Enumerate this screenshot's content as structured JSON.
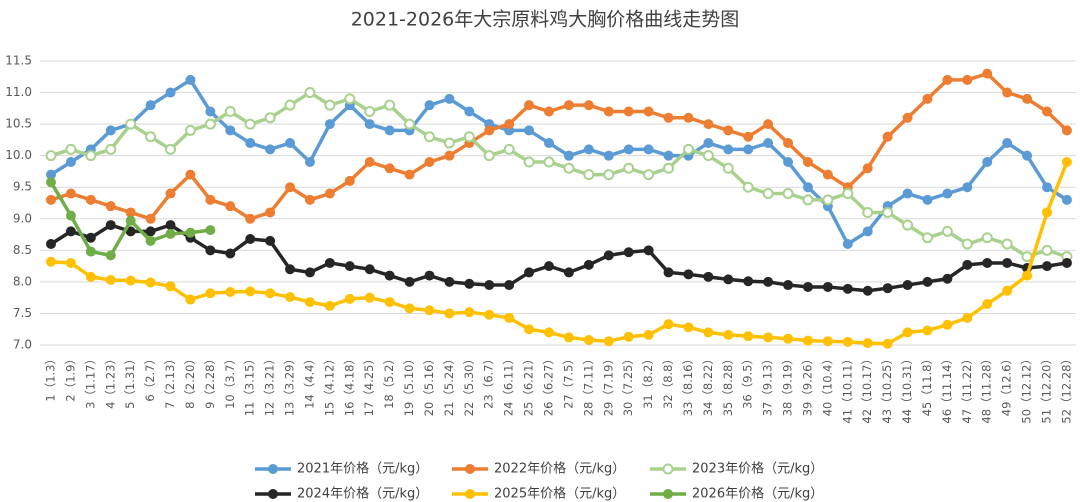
{
  "chart_data": {
    "type": "line",
    "title": "2021-2026年大宗原料鸡大胸价格曲线走势图",
    "categories": [
      "1（1.3）",
      "2（1.9）",
      "3（1.17）",
      "4（1.23）",
      "5（1.31）",
      "6（2.7）",
      "7（2.13）",
      "8（2.20）",
      "9（2.28）",
      "10（3.7）",
      "11（3.15）",
      "12（3.21）",
      "13（3.29）",
      "14（4.4）",
      "15（4.12）",
      "16（4.18）",
      "17（4.25）",
      "18（5.2）",
      "19（5.10）",
      "20（5.16）",
      "21（5.24）",
      "22（5.30）",
      "23（6.7）",
      "24（6.11）",
      "25（6.21）",
      "26（6.27）",
      "27（7.5）",
      "28（7.11）",
      "29（7.19）",
      "30（7.25）",
      "31（8.2）",
      "32（8.8）",
      "33（8.16）",
      "34（8.22）",
      "35（8.28）",
      "36（9.5）",
      "37（9.13）",
      "38（9.19）",
      "39（9.26）",
      "40（10.4）",
      "41（10.11）",
      "42（10.17）",
      "43（10.25）",
      "44（10.31）",
      "45（11.8）",
      "46（11.14）",
      "47（11.22）",
      "48（11.28）",
      "49（12.6）",
      "50（12.12）",
      "51（12.20）",
      "52（12.28）"
    ],
    "series": [
      {
        "name": "2021年价格（元/kg）",
        "color": "#5b9bd5",
        "values": [
          9.7,
          9.9,
          10.1,
          10.4,
          10.5,
          10.8,
          11.0,
          11.2,
          10.7,
          10.4,
          10.2,
          10.1,
          10.2,
          9.9,
          10.5,
          10.8,
          10.5,
          10.4,
          10.4,
          10.8,
          10.9,
          10.7,
          10.5,
          10.4,
          10.4,
          10.2,
          10.0,
          10.1,
          10.0,
          10.1,
          10.1,
          10.0,
          10.0,
          10.2,
          10.1,
          10.1,
          10.2,
          9.9,
          9.5,
          9.2,
          8.6,
          8.8,
          9.2,
          9.4,
          9.3,
          9.4,
          9.5,
          9.9,
          10.2,
          10.0,
          9.5,
          9.3
        ]
      },
      {
        "name": "2022年价格（元/kg）",
        "color": "#ed7d31",
        "values": [
          9.3,
          9.4,
          9.3,
          9.2,
          9.1,
          9.0,
          9.4,
          9.7,
          9.3,
          9.2,
          9.0,
          9.1,
          9.5,
          9.3,
          9.4,
          9.6,
          9.9,
          9.8,
          9.7,
          9.9,
          10.0,
          10.2,
          10.4,
          10.5,
          10.8,
          10.7,
          10.8,
          10.8,
          10.7,
          10.7,
          10.7,
          10.6,
          10.6,
          10.5,
          10.4,
          10.3,
          10.5,
          10.2,
          9.9,
          9.7,
          9.5,
          9.8,
          10.3,
          10.6,
          10.9,
          11.2,
          11.2,
          11.3,
          11.0,
          10.9,
          10.7,
          10.4
        ]
      },
      {
        "name": "2023年价格（元/kg）",
        "color": "#a9d18e",
        "hollow": true,
        "values": [
          10.0,
          10.1,
          10.0,
          10.1,
          10.5,
          10.3,
          10.1,
          10.4,
          10.5,
          10.7,
          10.5,
          10.6,
          10.8,
          11.0,
          10.8,
          10.9,
          10.7,
          10.8,
          10.5,
          10.3,
          10.2,
          10.3,
          10.0,
          10.1,
          9.9,
          9.9,
          9.8,
          9.7,
          9.7,
          9.8,
          9.7,
          9.8,
          10.1,
          10.0,
          9.8,
          9.5,
          9.4,
          9.4,
          9.3,
          9.3,
          9.4,
          9.1,
          9.1,
          8.9,
          8.7,
          8.8,
          8.6,
          8.7,
          8.6,
          8.4,
          8.5,
          8.4
        ]
      },
      {
        "name": "2024年价格（元/kg）",
        "color": "#262626",
        "values": [
          8.6,
          8.8,
          8.7,
          8.9,
          8.8,
          8.8,
          8.9,
          8.7,
          8.5,
          8.45,
          8.68,
          8.65,
          8.2,
          8.15,
          8.3,
          8.25,
          8.2,
          8.1,
          8.0,
          8.1,
          8.0,
          7.97,
          7.95,
          7.95,
          8.15,
          8.25,
          8.15,
          8.27,
          8.42,
          8.47,
          8.5,
          8.15,
          8.12,
          8.08,
          8.04,
          8.01,
          8.0,
          7.95,
          7.92,
          7.92,
          7.89,
          7.86,
          7.9,
          7.95,
          8.0,
          8.05,
          8.27,
          8.3,
          8.3,
          8.22,
          8.25,
          8.3
        ]
      },
      {
        "name": "2025年价格（元/kg）",
        "color": "#ffc000",
        "values": [
          8.32,
          8.3,
          8.08,
          8.03,
          8.02,
          7.99,
          7.93,
          7.72,
          7.82,
          7.84,
          7.85,
          7.82,
          7.76,
          7.68,
          7.62,
          7.73,
          7.75,
          7.68,
          7.58,
          7.55,
          7.5,
          7.52,
          7.48,
          7.43,
          7.25,
          7.2,
          7.12,
          7.08,
          7.06,
          7.13,
          7.16,
          7.33,
          7.28,
          7.2,
          7.16,
          7.14,
          7.12,
          7.1,
          7.07,
          7.06,
          7.05,
          7.03,
          7.02,
          7.2,
          7.23,
          7.32,
          7.43,
          7.65,
          7.86,
          8.1,
          9.1,
          9.9
        ]
      },
      {
        "name": "2026年价格（元/kg）",
        "color": "#70ad47",
        "values": [
          9.58,
          9.05,
          8.48,
          8.42,
          8.97,
          8.65,
          8.76,
          8.78,
          8.82,
          null,
          null,
          null,
          null,
          null,
          null,
          null,
          null,
          null,
          null,
          null,
          null,
          null,
          null,
          null,
          null,
          null,
          null,
          null,
          null,
          null,
          null,
          null,
          null,
          null,
          null,
          null,
          null,
          null,
          null,
          null,
          null,
          null,
          null,
          null,
          null,
          null,
          null,
          null,
          null,
          null,
          null,
          null
        ]
      }
    ],
    "ylim": [
      7.0,
      11.5
    ],
    "yticks": [
      {
        "value": 7,
        "label": "7.0"
      },
      7.5,
      {
        "value": 8,
        "label": "8.0"
      },
      8.5,
      {
        "value": 9,
        "label": "9.0"
      },
      9.5,
      {
        "value": 10,
        "label": "10.0"
      },
      10.5,
      {
        "value": 11,
        "label": "11.0"
      },
      11.5
    ],
    "grid": true,
    "legend": "bottom"
  }
}
